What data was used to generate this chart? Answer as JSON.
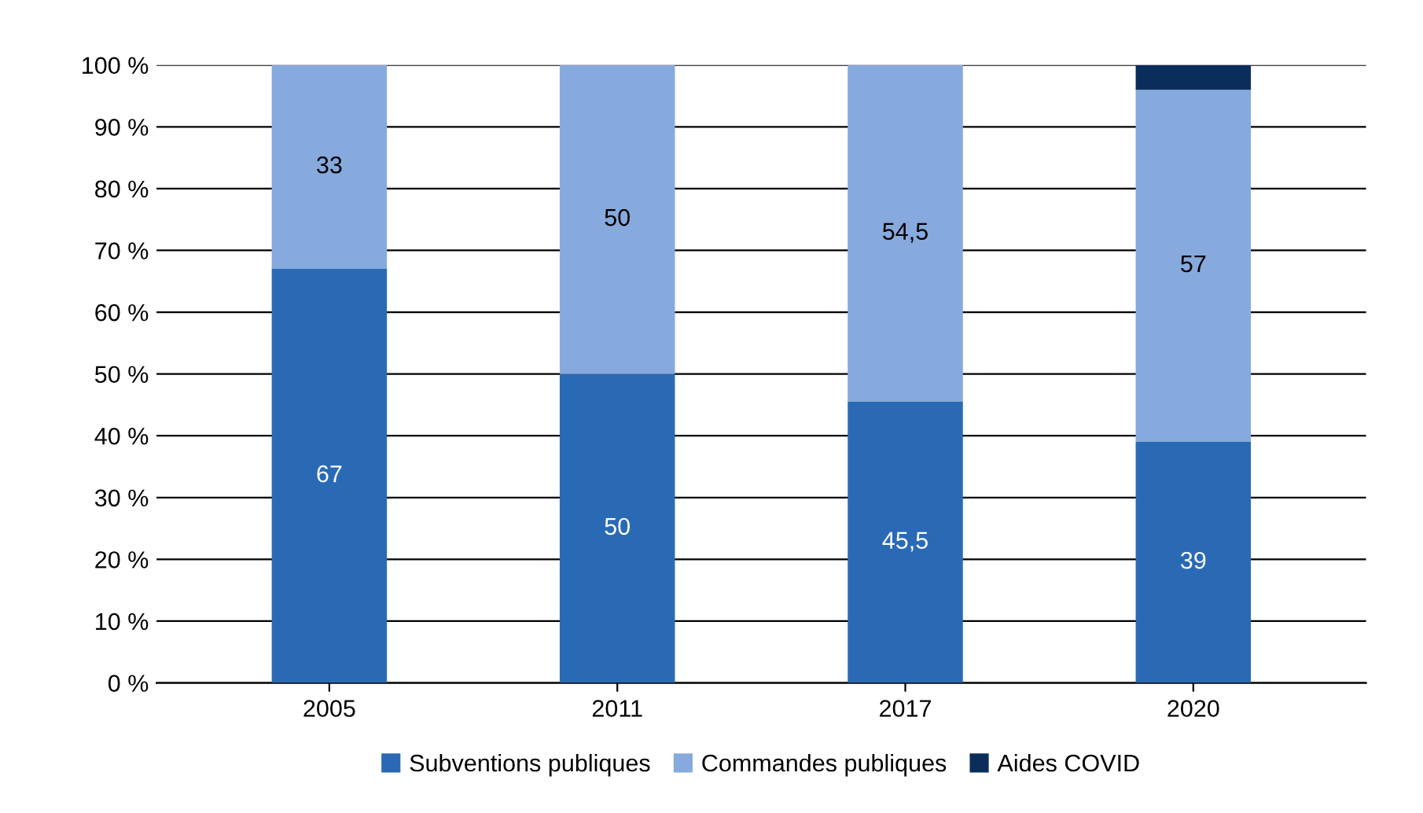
{
  "chart_data": {
    "type": "bar",
    "stacked": true,
    "categories": [
      "2005",
      "2011",
      "2017",
      "2020"
    ],
    "series": [
      {
        "name": "Subventions publiques",
        "color": "#2a6ab5",
        "values": [
          67,
          50,
          45.5,
          39
        ],
        "value_labels": [
          "67",
          "50",
          "45,5",
          "39"
        ]
      },
      {
        "name": "Commandes publiques",
        "color": "#86aadd",
        "values": [
          33,
          50,
          54.5,
          57
        ],
        "value_labels": [
          "33",
          "50",
          "54,5",
          "57"
        ]
      },
      {
        "name": "Aides COVID",
        "color": "#0b2d5b",
        "values": [
          0,
          0,
          0,
          4
        ],
        "value_labels": [
          null,
          null,
          null,
          null
        ]
      }
    ],
    "ylim": [
      0,
      100
    ],
    "yticks": [
      {
        "value": 0,
        "label": "0 %"
      },
      {
        "value": 10,
        "label": "10 %"
      },
      {
        "value": 20,
        "label": "20 %"
      },
      {
        "value": 30,
        "label": "30 %"
      },
      {
        "value": 40,
        "label": "40 %"
      },
      {
        "value": 50,
        "label": "50 %"
      },
      {
        "value": 60,
        "label": "60 %"
      },
      {
        "value": 70,
        "label": "70 %"
      },
      {
        "value": 80,
        "label": "80 %"
      },
      {
        "value": 90,
        "label": "90 %"
      },
      {
        "value": 100,
        "label": "100 %"
      }
    ],
    "grid": "y",
    "legend": "bottom"
  }
}
